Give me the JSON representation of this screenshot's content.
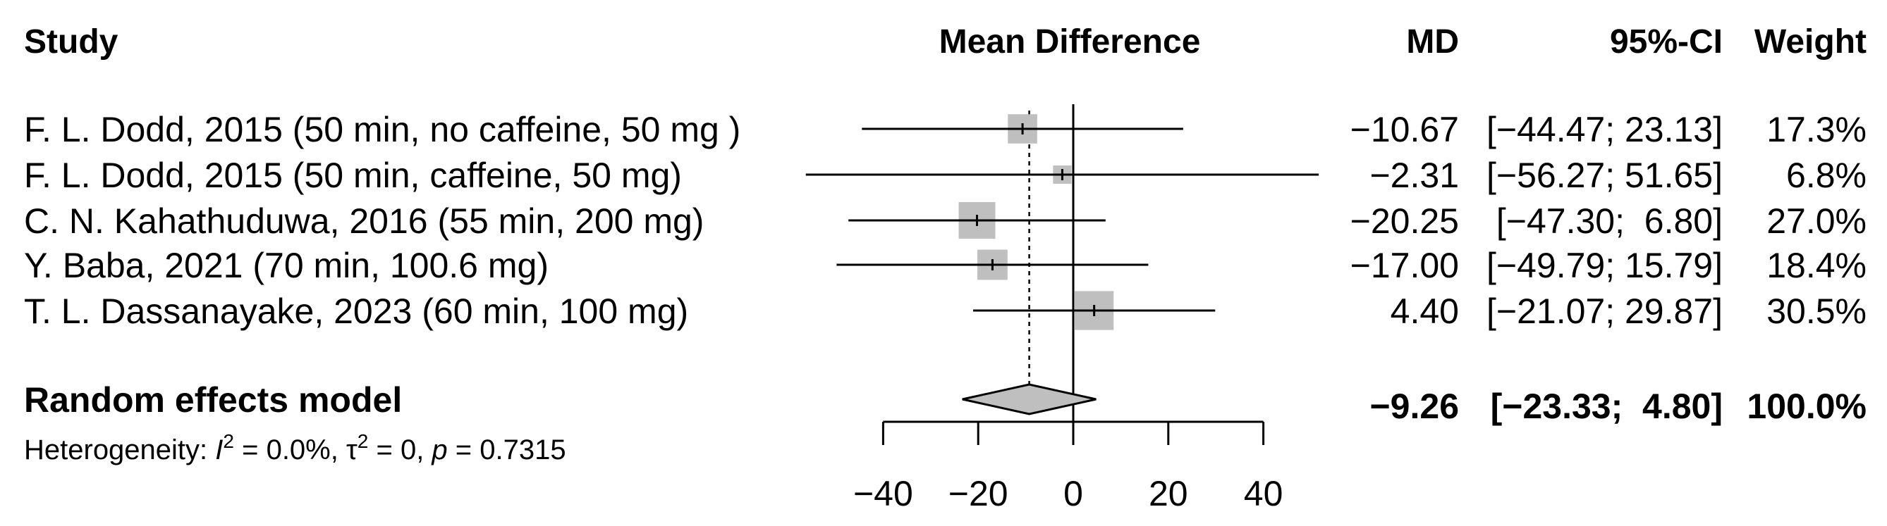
{
  "headers": {
    "study": "Study",
    "effect": "Mean Difference",
    "md": "MD",
    "ci": "95%-CI",
    "weight": "Weight"
  },
  "chart_data": {
    "type": "forest",
    "xlabel": "",
    "xlim": [
      -40,
      40
    ],
    "xticks": [
      -40,
      -20,
      0,
      20,
      40
    ],
    "xtick_labels": [
      "−40",
      "−20",
      "0",
      "20",
      "40"
    ],
    "reference_line": 0,
    "square_color": "#bfbfbf",
    "diamond_color": "#bfbfbf",
    "studies": [
      {
        "label": "F. L. Dodd, 2015 (50 min, no caffeine, 50 mg )",
        "md": -10.67,
        "lower": -44.47,
        "upper": 23.13,
        "weight": 17.3,
        "md_text": "−10.67",
        "ci_text": "[−44.47; 23.13]",
        "weight_text": "17.3%"
      },
      {
        "label": "F. L. Dodd, 2015 (50 min, caffeine, 50 mg)",
        "md": -2.31,
        "lower": -56.27,
        "upper": 51.65,
        "weight": 6.8,
        "md_text": "−2.31",
        "ci_text": "[−56.27; 51.65]",
        "weight_text": "6.8%"
      },
      {
        "label": "C. N. Kahathuduwa, 2016 (55 min, 200 mg)",
        "md": -20.25,
        "lower": -47.3,
        "upper": 6.8,
        "weight": 27.0,
        "md_text": "−20.25",
        "ci_text": "[−47.30;  6.80]",
        "weight_text": "27.0%"
      },
      {
        "label": "Y. Baba, 2021 (70 min, 100.6 mg)",
        "md": -17.0,
        "lower": -49.79,
        "upper": 15.79,
        "weight": 18.4,
        "md_text": "−17.00",
        "ci_text": "[−49.79; 15.79]",
        "weight_text": "18.4%"
      },
      {
        "label": "T. L. Dassanayake, 2023 (60 min, 100 mg)",
        "md": 4.4,
        "lower": -21.07,
        "upper": 29.87,
        "weight": 30.5,
        "md_text": "4.40",
        "ci_text": "[−21.07; 29.87]",
        "weight_text": "30.5%"
      }
    ],
    "summary": {
      "label": "Random effects model",
      "md": -9.26,
      "lower": -23.33,
      "upper": 4.8,
      "weight": 100.0,
      "md_text": "−9.26",
      "ci_text": "[−23.33;  4.80]",
      "weight_text": "100.0%"
    },
    "heterogeneity": {
      "prefix": "Heterogeneity: ",
      "i2_symbol": "I",
      "i2_value": " = 0.0%, ",
      "tau2_symbol": "τ",
      "tau2_value": " = 0, ",
      "p_symbol": "p",
      "p_value": " = 0.7315",
      "superscript": "2"
    }
  }
}
